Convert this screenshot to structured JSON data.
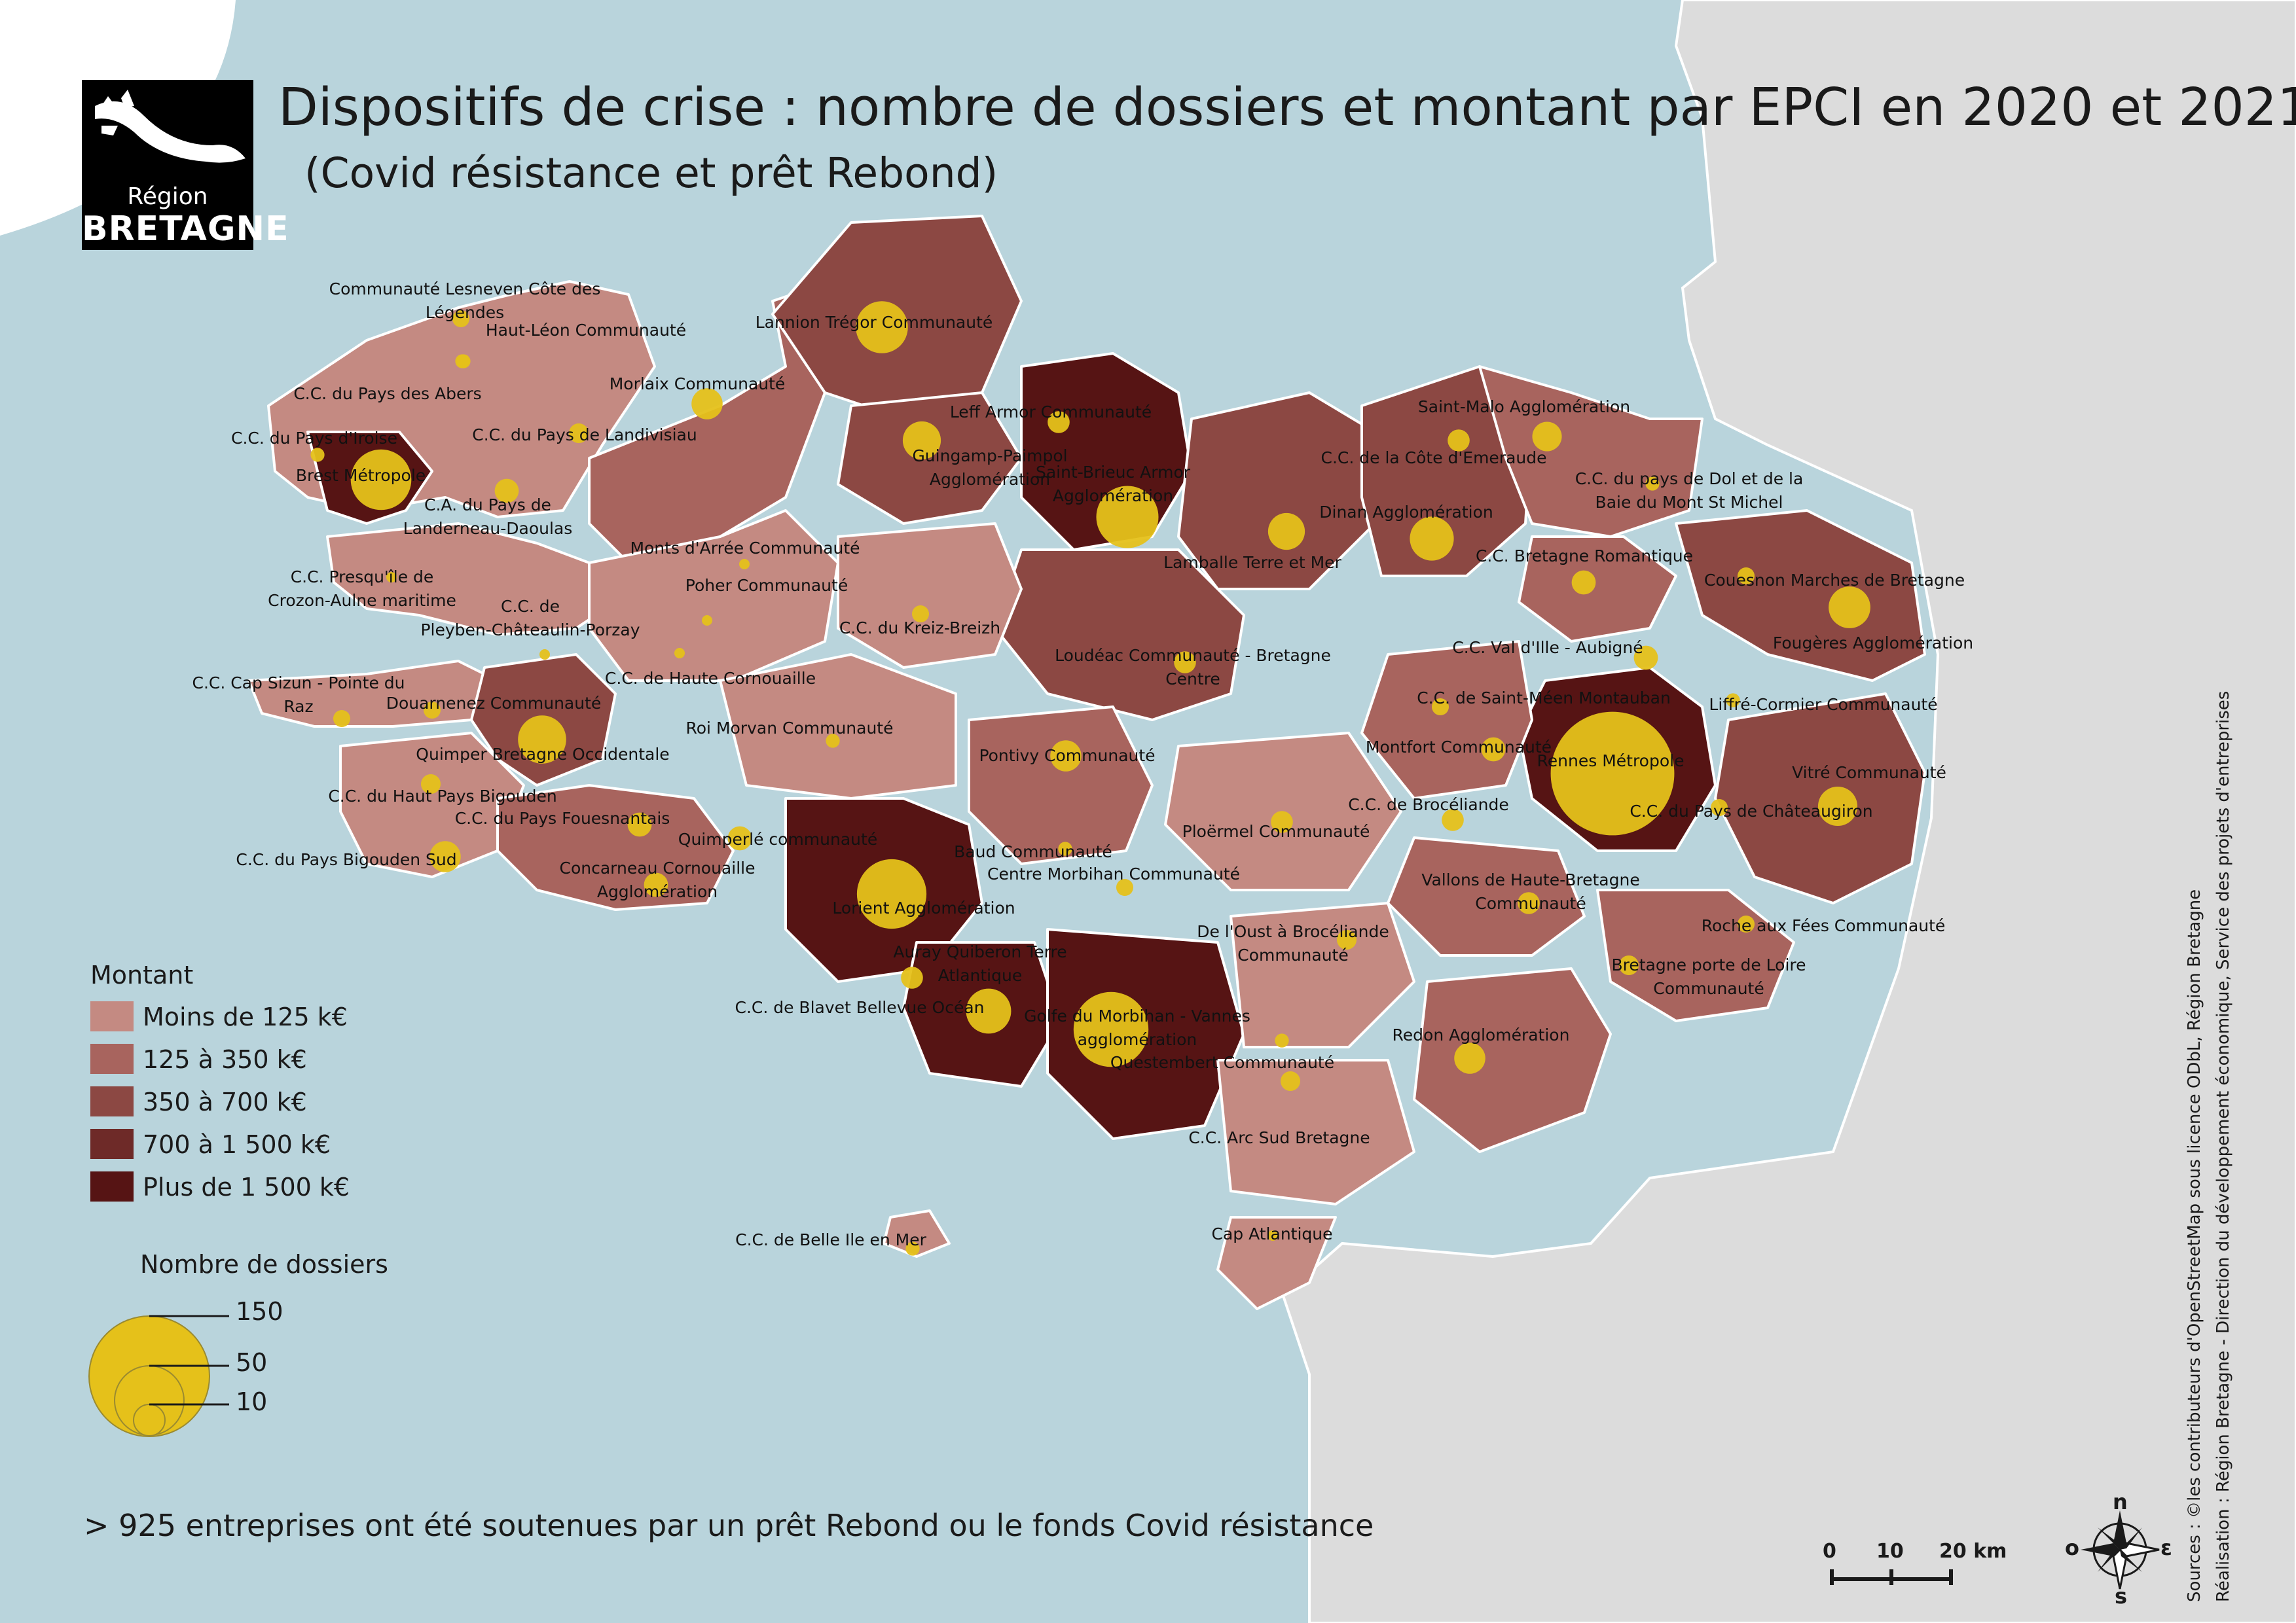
{
  "header": {
    "logo_region": "Région",
    "logo_bretagne": "BRETAGNE",
    "title": "Dispositifs de crise : nombre de dossiers et montant par EPCI en 2020 et 2021",
    "subtitle": "(Covid résistance et prêt Rebond)"
  },
  "legend": {
    "montant_title": "Montant",
    "classes": [
      {
        "label": "Moins de 125 k€",
        "color": "#c48a82"
      },
      {
        "label": "125 à 350 k€",
        "color": "#a8645e"
      },
      {
        "label": "350 à 700 k€",
        "color": "#8c4843"
      },
      {
        "label": "700 à 1 500 k€",
        "color": "#6e2a28"
      },
      {
        "label": "Plus de 1 500 k€",
        "color": "#561414"
      }
    ],
    "dossiers_title": "Nombre de dossiers",
    "sizes": [
      {
        "label": "150",
        "value": 150
      },
      {
        "label": "50",
        "value": 50
      },
      {
        "label": "10",
        "value": 10
      }
    ],
    "bubble_color": "#e5c11a"
  },
  "footer": {
    "note": "> 925 entreprises ont été soutenues par un prêt Rebond ou le fonds Covid résistance"
  },
  "sources": {
    "line1": "Sources : ©les contributeurs d'OpenStreetMap sous licence ODbL, Région Bretagne",
    "line2": "Réalisation : Région Bretagne - Direction du développement économique, Service des projets d'entreprises"
  },
  "scale": {
    "t0": "0",
    "t1": "10",
    "t2": "20 km"
  },
  "compass": {
    "n": "n",
    "s": "s",
    "e": "ε",
    "o": "o"
  },
  "colors": {
    "sea": "#b9d4dc",
    "land": "#dcdcdc"
  },
  "places": [
    {
      "name": "Communauté Lesneven Côte des\nLégendes",
      "cls": 1
    },
    {
      "name": "Haut-Léon Communauté",
      "cls": 1
    },
    {
      "name": "Lannion Trégor Communauté",
      "cls": 2
    },
    {
      "name": "C.C. du Pays des Abers",
      "cls": 1
    },
    {
      "name": "Morlaix Communauté",
      "cls": 1
    },
    {
      "name": "Leff Armor Communauté",
      "cls": 1
    },
    {
      "name": "C.C. du Pays d'Iroise",
      "cls": 1
    },
    {
      "name": "C.C. du Pays de Landivisiau",
      "cls": 1
    },
    {
      "name": "Guingamp-Paimpol\nAgglomération",
      "cls": 2
    },
    {
      "name": "Saint-Brieuc Armor\nAgglomération",
      "cls": 4
    },
    {
      "name": "Saint-Malo Agglomération",
      "cls": 2
    },
    {
      "name": "Brest Métropole",
      "cls": 4
    },
    {
      "name": "C.A. du Pays de\nLanderneau-Daoulas",
      "cls": 1
    },
    {
      "name": "C.C. de la Côte d'Emeraude",
      "cls": 1
    },
    {
      "name": "C.C. du pays de Dol et de la\nBaie du Mont St Michel",
      "cls": 1
    },
    {
      "name": "Dinan Agglomération",
      "cls": 2
    },
    {
      "name": "Lamballe Terre et Mer",
      "cls": 2
    },
    {
      "name": "Monts d'Arrée Communauté",
      "cls": 0
    },
    {
      "name": "C.C. Bretagne Romantique",
      "cls": 1
    },
    {
      "name": "C.C. Presqu'île de\nCrozon-Aulne maritime",
      "cls": 1
    },
    {
      "name": "Poher Communauté",
      "cls": 0
    },
    {
      "name": "Couesnon Marches de Bretagne",
      "cls": 1
    },
    {
      "name": "C.C. de\nPleyben-Châteaulin-Porzay",
      "cls": 0
    },
    {
      "name": "C.C. du Kreiz-Breizh",
      "cls": 0
    },
    {
      "name": "Fougères Agglomération",
      "cls": 2
    },
    {
      "name": "C.C. Val d'Ille - Aubigné",
      "cls": 1
    },
    {
      "name": "Loudéac Communauté - Bretagne\nCentre",
      "cls": 1
    },
    {
      "name": "C.C. de Haute Cornouaille",
      "cls": 0
    },
    {
      "name": "C.C. Cap Sizun - Pointe du\nRaz",
      "cls": 0
    },
    {
      "name": "Douarnenez Communauté",
      "cls": 1
    },
    {
      "name": "C.C. de Saint-Méen Montauban",
      "cls": 1
    },
    {
      "name": "Liffré-Cormier Communauté",
      "cls": 1
    },
    {
      "name": "Roi Morvan Communauté",
      "cls": 0
    },
    {
      "name": "Quimper Bretagne Occidentale",
      "cls": 2
    },
    {
      "name": "Montfort Communauté",
      "cls": 1
    },
    {
      "name": "Rennes Métropole",
      "cls": 4
    },
    {
      "name": "Pontivy Communauté",
      "cls": 1
    },
    {
      "name": "Vitré Communauté",
      "cls": 2
    },
    {
      "name": "C.C. du Haut Pays Bigouden",
      "cls": 0
    },
    {
      "name": "C.C. de Brocéliande",
      "cls": 1
    },
    {
      "name": "C.C. du Pays de Châteaugiron",
      "cls": 1
    },
    {
      "name": "C.C. du Pays Fouesnantais",
      "cls": 1
    },
    {
      "name": "Ploërmel Communauté",
      "cls": 1
    },
    {
      "name": "Quimperlé communauté",
      "cls": 1
    },
    {
      "name": "Baud Communauté",
      "cls": 0
    },
    {
      "name": "C.C. du Pays Bigouden Sud",
      "cls": 1
    },
    {
      "name": "Concarneau Cornouaille\nAgglomération",
      "cls": 1
    },
    {
      "name": "Centre Morbihan Communauté",
      "cls": 0
    },
    {
      "name": "Vallons de Haute-Bretagne\nCommunauté",
      "cls": 1
    },
    {
      "name": "Lorient Agglomération",
      "cls": 4
    },
    {
      "name": "Roche aux Fées Communauté",
      "cls": 1
    },
    {
      "name": "De l'Oust à Brocéliande\nCommunauté",
      "cls": 0
    },
    {
      "name": "Auray Quiberon Terre\nAtlantique",
      "cls": 4
    },
    {
      "name": "Bretagne porte de Loire\nCommunauté",
      "cls": 1
    },
    {
      "name": "C.C. de Blavet Bellevue Océan",
      "cls": 1
    },
    {
      "name": "Golfe du Morbihan - Vannes\nagglomération",
      "cls": 4
    },
    {
      "name": "Redon Agglomération",
      "cls": 1
    },
    {
      "name": "Questembert Communauté",
      "cls": 0
    },
    {
      "name": "C.C. Arc Sud Bretagne",
      "cls": 0
    },
    {
      "name": "C.C. de Belle Ile en Mer",
      "cls": 0
    },
    {
      "name": "Cap Atlantique",
      "cls": 0
    }
  ],
  "bubbles": [
    {
      "name": "Communauté Lesneven Côte des Légendes",
      "value": 3
    },
    {
      "name": "Haut-Léon Communauté",
      "value": 2
    },
    {
      "name": "Lannion Trégor Communauté",
      "value": 28
    },
    {
      "name": "C.C. du Pays des Abers",
      "value": 2
    },
    {
      "name": "Morlaix Communauté",
      "value": 10
    },
    {
      "name": "Leff Armor Communauté",
      "value": 5
    },
    {
      "name": "C.C. du Pays d'Iroise",
      "value": 2
    },
    {
      "name": "C.C. du Pays de Landivisiau",
      "value": 4
    },
    {
      "name": "Guingamp-Paimpol Agglomération",
      "value": 15
    },
    {
      "name": "Saint-Brieuc Armor Agglomération",
      "value": 40
    },
    {
      "name": "Saint-Malo Agglomération",
      "value": 9
    },
    {
      "name": "Brest Métropole",
      "value": 38
    },
    {
      "name": "C.A. du Pays de Landerneau-Daoulas",
      "value": 6
    },
    {
      "name": "C.C. de la Côte d'Emeraude",
      "value": 5
    },
    {
      "name": "C.C. du pays de Dol et de la Baie du Mont St Michel",
      "value": 2
    },
    {
      "name": "Dinan Agglomération",
      "value": 20
    },
    {
      "name": "Lamballe Terre et Mer",
      "value": 14
    },
    {
      "name": "Monts d'Arrée Communauté",
      "value": 1
    },
    {
      "name": "C.C. Bretagne Romantique",
      "value": 6
    },
    {
      "name": "C.C. Presqu'île de Crozon-Aulne maritime",
      "value": 1
    },
    {
      "name": "Poher Communauté",
      "value": 1
    },
    {
      "name": "Couesnon Marches de Bretagne",
      "value": 3
    },
    {
      "name": "C.C. de Pleyben-Châteaulin-Porzay",
      "value": 1
    },
    {
      "name": "C.C. du Kreiz-Breizh",
      "value": 3
    },
    {
      "name": "Fougères Agglomération",
      "value": 18
    },
    {
      "name": "C.C. Val d'Ille - Aubigné",
      "value": 6
    },
    {
      "name": "Loudéac Communauté - Bretagne Centre",
      "value": 5
    },
    {
      "name": "C.C. de Haute Cornouaille",
      "value": 1
    },
    {
      "name": "C.C. Cap Sizun - Pointe du Raz",
      "value": 3
    },
    {
      "name": "Douarnenez Communauté",
      "value": 3
    },
    {
      "name": "C.C. de Saint-Méen Montauban",
      "value": 3
    },
    {
      "name": "Liffré-Cormier Communauté",
      "value": 2
    },
    {
      "name": "Roi Morvan Communauté",
      "value": 2
    },
    {
      "name": "Quimper Bretagne Occidentale",
      "value": 24
    },
    {
      "name": "Montfort Communauté",
      "value": 6
    },
    {
      "name": "Rennes Métropole",
      "value": 158
    },
    {
      "name": "Pontivy Communauté",
      "value": 10
    },
    {
      "name": "Vitré Communauté",
      "value": 16
    },
    {
      "name": "C.C. du Haut Pays Bigouden",
      "value": 4
    },
    {
      "name": "C.C. de Brocéliande",
      "value": 5
    },
    {
      "name": "C.C. du Pays de Châteaugiron",
      "value": 3
    },
    {
      "name": "C.C. du Pays Fouesnantais",
      "value": 6
    },
    {
      "name": "Ploërmel Communauté",
      "value": 5
    },
    {
      "name": "Quimperlé communauté",
      "value": 6
    },
    {
      "name": "Baud Communauté",
      "value": 2
    },
    {
      "name": "C.C. du Pays Bigouden Sud",
      "value": 10
    },
    {
      "name": "Concarneau Cornouaille Agglomération",
      "value": 6
    },
    {
      "name": "Centre Morbihan Communauté",
      "value": 3
    },
    {
      "name": "Vallons de Haute-Bretagne Communauté",
      "value": 5
    },
    {
      "name": "Lorient Agglomération",
      "value": 50
    },
    {
      "name": "Roche aux Fées Communauté",
      "value": 3
    },
    {
      "name": "De l'Oust à Brocéliande Communauté",
      "value": 4
    },
    {
      "name": "Auray Quiberon Terre Atlantique",
      "value": 5
    },
    {
      "name": "Bretagne porte de Loire Communauté",
      "value": 4
    },
    {
      "name": "C.C. de Blavet Bellevue Océan",
      "value": 21
    },
    {
      "name": "Golfe du Morbihan - Vannes agglomération",
      "value": 58
    },
    {
      "name": "Redon Agglomération",
      "value": 10
    },
    {
      "name": "Questembert Communauté",
      "value": 2
    },
    {
      "name": "C.C. Arc Sud Bretagne",
      "value": 4
    },
    {
      "name": "C.C. de Belle Ile en Mer",
      "value": 2
    },
    {
      "name": "Cap Atlantique",
      "value": 1
    }
  ]
}
